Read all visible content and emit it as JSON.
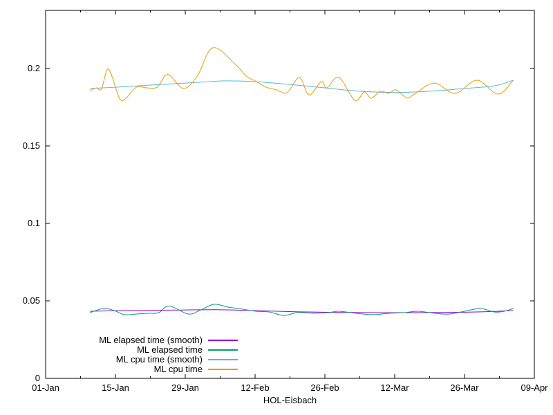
{
  "figure": {
    "background": "#ffffff",
    "border_color": "#000000",
    "text_color": "#000000"
  },
  "chart_data": {
    "type": "line",
    "title": "",
    "xlabel": "HOL-Eisbach",
    "ylabel": "",
    "x_unit": "days since 01-Jan",
    "xlim": [
      0,
      98
    ],
    "ylim": [
      0,
      0.2375
    ],
    "grid": false,
    "legend_position": "inside-bottom-left",
    "x_ticks": [
      {
        "pos": 0,
        "label": "01-Jan"
      },
      {
        "pos": 14,
        "label": "15-Jan"
      },
      {
        "pos": 28,
        "label": "29-Jan"
      },
      {
        "pos": 42,
        "label": "12-Feb"
      },
      {
        "pos": 56,
        "label": "26-Feb"
      },
      {
        "pos": 70,
        "label": "12-Mar"
      },
      {
        "pos": 84,
        "label": "26-Mar"
      },
      {
        "pos": 98,
        "label": "09-Apr"
      }
    ],
    "x_minor_ticks": [
      7,
      21,
      35,
      49,
      63,
      77,
      91
    ],
    "y_ticks": [
      {
        "pos": 0,
        "label": "0"
      },
      {
        "pos": 0.05,
        "label": "0.05"
      },
      {
        "pos": 0.1,
        "label": "0.1"
      },
      {
        "pos": 0.15,
        "label": "0.15"
      },
      {
        "pos": 0.2,
        "label": "0.2"
      }
    ],
    "series": [
      {
        "name": "ML elapsed time (smooth)",
        "color": "#9400d3",
        "style": "smooth",
        "points": [
          [
            8.9,
            0.0433
          ],
          [
            15,
            0.0437
          ],
          [
            25,
            0.044
          ],
          [
            34,
            0.0443
          ],
          [
            42,
            0.0437
          ],
          [
            50,
            0.043
          ],
          [
            58,
            0.0426
          ],
          [
            66,
            0.0424
          ],
          [
            74,
            0.0424
          ],
          [
            82,
            0.0426
          ],
          [
            88,
            0.043
          ],
          [
            93.8,
            0.0437
          ]
        ]
      },
      {
        "name": "ML elapsed time",
        "color": "#009e73",
        "style": "raw",
        "points": [
          [
            8.9,
            0.0424
          ],
          [
            11.6,
            0.0451
          ],
          [
            13.7,
            0.0438
          ],
          [
            15.8,
            0.0411
          ],
          [
            18.2,
            0.0415
          ],
          [
            20.8,
            0.042
          ],
          [
            22.7,
            0.0424
          ],
          [
            24.8,
            0.0467
          ],
          [
            28.6,
            0.0415
          ],
          [
            31.0,
            0.044
          ],
          [
            33.8,
            0.0478
          ],
          [
            36.6,
            0.046
          ],
          [
            39.4,
            0.0447
          ],
          [
            42.1,
            0.0433
          ],
          [
            44.9,
            0.0428
          ],
          [
            47.7,
            0.0406
          ],
          [
            50.5,
            0.0424
          ],
          [
            53.9,
            0.042
          ],
          [
            56.7,
            0.0424
          ],
          [
            58.8,
            0.0433
          ],
          [
            62.2,
            0.042
          ],
          [
            65.7,
            0.0411
          ],
          [
            68.5,
            0.0419
          ],
          [
            71.9,
            0.0424
          ],
          [
            74.7,
            0.0433
          ],
          [
            78.2,
            0.0419
          ],
          [
            81.0,
            0.0415
          ],
          [
            84.0,
            0.0433
          ],
          [
            87.2,
            0.0451
          ],
          [
            90.0,
            0.0428
          ],
          [
            92.0,
            0.0433
          ],
          [
            93.8,
            0.0451
          ]
        ]
      },
      {
        "name": "ML cpu time (smooth)",
        "color": "#56b4e9",
        "style": "smooth",
        "points": [
          [
            8.9,
            0.1871
          ],
          [
            14,
            0.1879
          ],
          [
            21,
            0.1893
          ],
          [
            28,
            0.1906
          ],
          [
            33,
            0.1915
          ],
          [
            36,
            0.192
          ],
          [
            42,
            0.1915
          ],
          [
            49,
            0.1897
          ],
          [
            56,
            0.1875
          ],
          [
            63,
            0.1853
          ],
          [
            70,
            0.1845
          ],
          [
            77,
            0.1853
          ],
          [
            84,
            0.1871
          ],
          [
            90,
            0.1888
          ],
          [
            93.8,
            0.1924
          ]
        ]
      },
      {
        "name": "ML cpu time",
        "color": "#e69f00",
        "style": "raw",
        "points": [
          [
            8.9,
            0.1857
          ],
          [
            10.2,
            0.1875
          ],
          [
            11.2,
            0.1866
          ],
          [
            12.6,
            0.1996
          ],
          [
            14.8,
            0.1808
          ],
          [
            16.1,
            0.1808
          ],
          [
            18.2,
            0.1879
          ],
          [
            20.3,
            0.1875
          ],
          [
            22.4,
            0.188
          ],
          [
            24.5,
            0.1962
          ],
          [
            27.6,
            0.1871
          ],
          [
            30.4,
            0.195
          ],
          [
            33.5,
            0.2134
          ],
          [
            37.9,
            0.2031
          ],
          [
            40.3,
            0.195
          ],
          [
            42.0,
            0.192
          ],
          [
            44.2,
            0.188
          ],
          [
            46.3,
            0.1862
          ],
          [
            48.4,
            0.1844
          ],
          [
            50.9,
            0.1942
          ],
          [
            52.8,
            0.183
          ],
          [
            55.3,
            0.1915
          ],
          [
            56.4,
            0.1875
          ],
          [
            58.8,
            0.1942
          ],
          [
            62.0,
            0.1795
          ],
          [
            63.9,
            0.1848
          ],
          [
            65.3,
            0.1808
          ],
          [
            67.1,
            0.1853
          ],
          [
            68.8,
            0.184
          ],
          [
            70.3,
            0.1862
          ],
          [
            72.4,
            0.181
          ],
          [
            74.0,
            0.1835
          ],
          [
            77.9,
            0.1906
          ],
          [
            82.1,
            0.1839
          ],
          [
            86.5,
            0.1924
          ],
          [
            90.7,
            0.1835
          ],
          [
            93.8,
            0.1924
          ]
        ]
      }
    ]
  }
}
